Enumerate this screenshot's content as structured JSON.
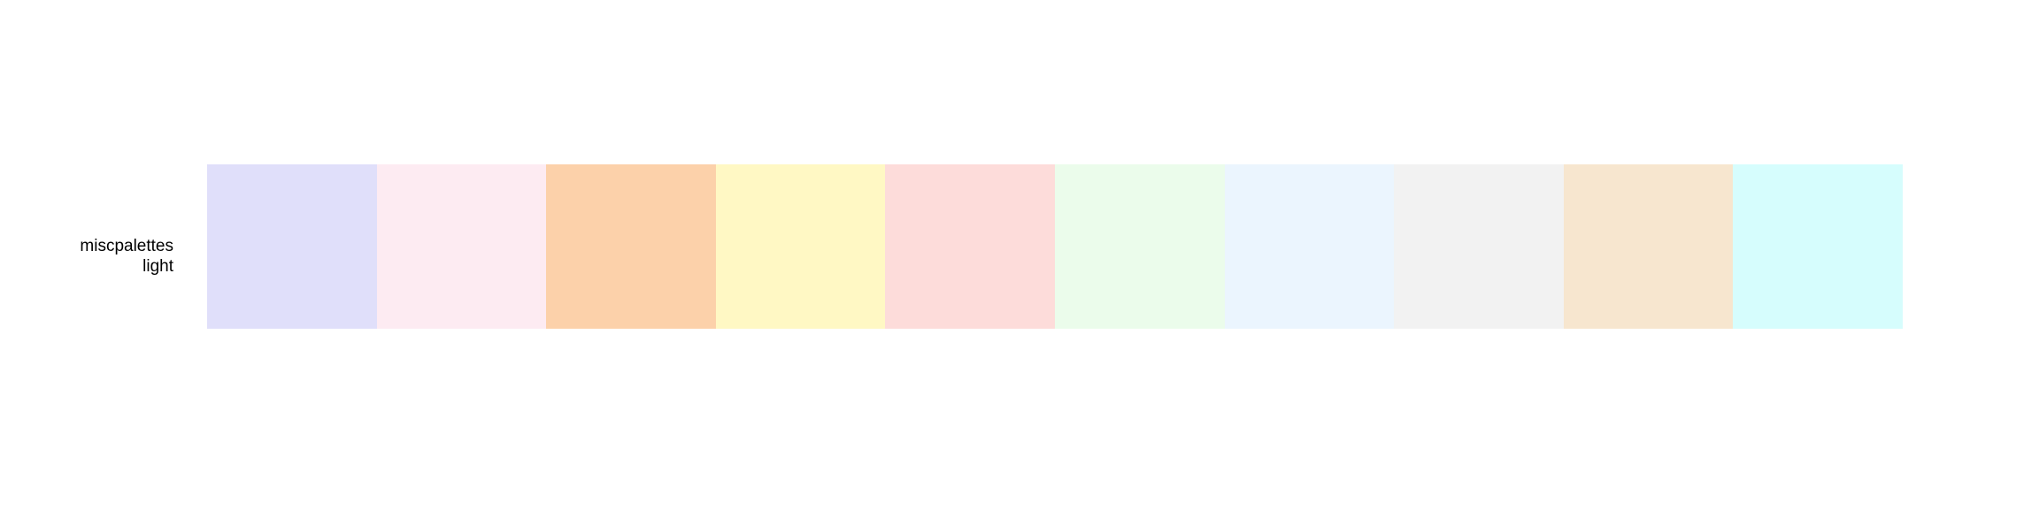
{
  "chart_data": {
    "type": "bar",
    "palette_label_lines": [
      "miscpalettes",
      "light"
    ],
    "swatches": [
      "#e0dffa",
      "#fdebf2",
      "#fcd1aa",
      "#fff8c4",
      "#fddcda",
      "#ebfceb",
      "#ebf5fe",
      "#f2f2f2",
      "#f7e6cf",
      "#d6fdfd"
    ]
  }
}
